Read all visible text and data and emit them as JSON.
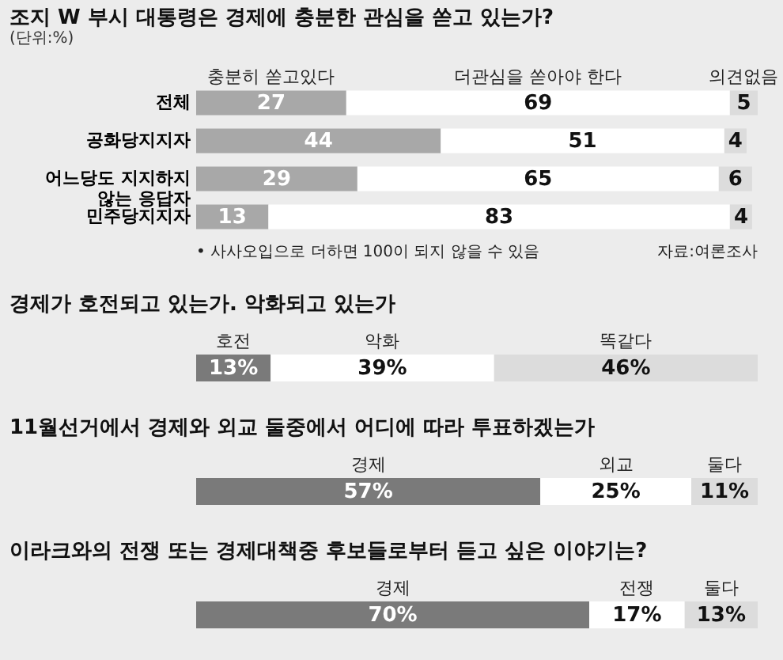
{
  "chart_data": [
    {
      "type": "bar",
      "orientation": "horizontal",
      "stacked": true,
      "data_labels": true,
      "title": "조지 W 부시 대통령은 경제에 충분한 관심을 쏟고 있는가?",
      "subtitle": "(단위:%)",
      "categories": [
        "전체",
        "공화당지지자",
        "어느당도 지지하지 않는 응답자",
        "민주당지지자"
      ],
      "series": [
        {
          "name": "충분히 쏟고있다",
          "color": "#a8a8a8",
          "values": [
            27,
            44,
            29,
            13
          ]
        },
        {
          "name": "더관심을 쏟아야 한다",
          "color": "#ffffff",
          "values": [
            69,
            51,
            65,
            83
          ]
        },
        {
          "name": "의견없음",
          "color": "#dcdcdc",
          "values": [
            5,
            4,
            6,
            4
          ]
        }
      ],
      "annotations": [
        "• 사사오입으로 더하면 100이 되지 않을 수 있음",
        "자료:여론조사"
      ]
    },
    {
      "type": "bar",
      "orientation": "horizontal",
      "stacked": true,
      "title": "경제가 호전되고 있는가. 악화되고 있는가",
      "categories": [
        null
      ],
      "series": [
        {
          "name": "호전",
          "color": "#7a7a7a",
          "values": [
            13
          ],
          "value_labels": [
            "13%"
          ]
        },
        {
          "name": "악화",
          "color": "#ffffff",
          "values": [
            39
          ],
          "value_labels": [
            "39%"
          ]
        },
        {
          "name": "똑같다",
          "color": "#dcdcdc",
          "values": [
            46
          ],
          "value_labels": [
            "46%"
          ]
        }
      ]
    },
    {
      "type": "bar",
      "orientation": "horizontal",
      "stacked": true,
      "title": "11월선거에서 경제와 외교 둘중에서 어디에 따라 투표하겠는가",
      "categories": [
        null
      ],
      "series": [
        {
          "name": "경제",
          "color": "#7a7a7a",
          "values": [
            57
          ],
          "value_labels": [
            "57%"
          ]
        },
        {
          "name": "외교",
          "color": "#ffffff",
          "values": [
            25
          ],
          "value_labels": [
            "25%"
          ]
        },
        {
          "name": "둘다",
          "color": "#dcdcdc",
          "values": [
            11
          ],
          "value_labels": [
            "11%"
          ]
        }
      ]
    },
    {
      "type": "bar",
      "orientation": "horizontal",
      "stacked": true,
      "title": "이라크와의 전쟁 또는 경제대책중 후보들로부터 듣고 싶은 이야기는?",
      "categories": [
        null
      ],
      "series": [
        {
          "name": "경제",
          "color": "#7a7a7a",
          "values": [
            70
          ],
          "value_labels": [
            "70%"
          ]
        },
        {
          "name": "전쟁",
          "color": "#ffffff",
          "values": [
            17
          ],
          "value_labels": [
            "17%"
          ]
        },
        {
          "name": "둘다",
          "color": "#dcdcdc",
          "values": [
            13
          ],
          "value_labels": [
            "13%"
          ]
        }
      ]
    }
  ]
}
